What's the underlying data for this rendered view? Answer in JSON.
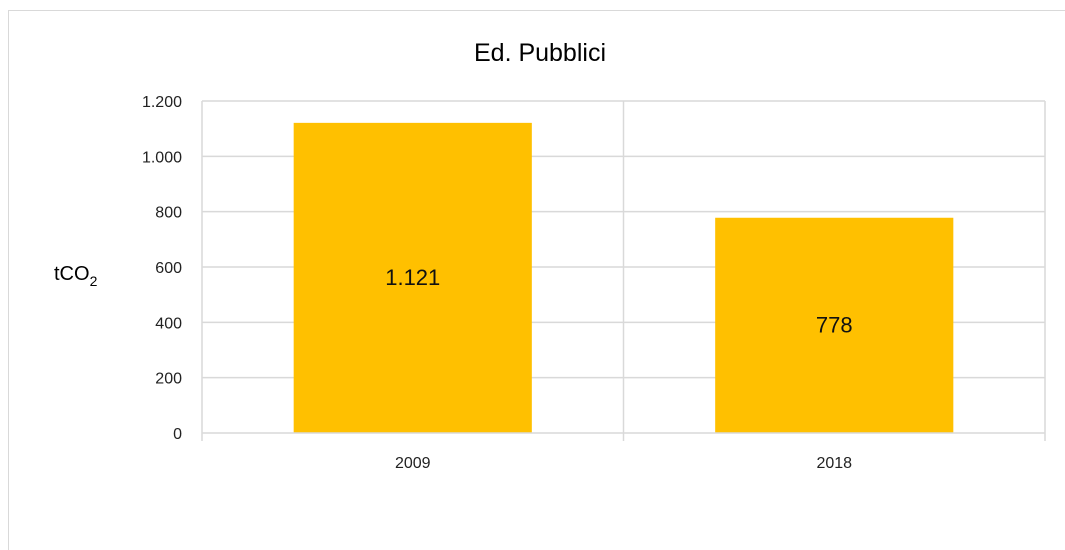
{
  "chart_data": {
    "type": "bar",
    "title": "Ed. Pubblici",
    "ylabel": "tCO",
    "ylabel_subscript": "2",
    "xlabel": "",
    "categories": [
      "2009",
      "2018"
    ],
    "values": [
      1121,
      778
    ],
    "data_labels": [
      "1.121",
      "778"
    ],
    "ylim": [
      0,
      1200
    ],
    "y_ticks": [
      0,
      200,
      400,
      600,
      800,
      1000,
      1200
    ],
    "y_tick_labels": [
      "0",
      "200",
      "400",
      "600",
      "800",
      "1.000",
      "1.200"
    ],
    "grid": true,
    "legend": "none",
    "bar_color": "#FFC000",
    "grid_color": "#D9D9D9"
  }
}
